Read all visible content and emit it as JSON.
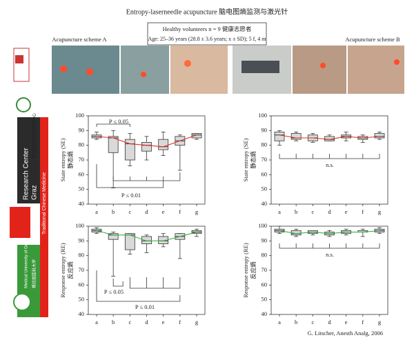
{
  "header": {
    "title": "Entropy-laserneedle acupuncture 脑电图熵监测与激光针",
    "group": "Healthy volunteers n = 9   健康志愿者",
    "age": "Age: 25–36 years (28.8 ± 3.6 years; x ± SD); 5 f, 4 m"
  },
  "schemes": [
    "Acupuncture scheme A",
    "Acupuncture scheme B"
  ],
  "sidebar": {
    "center": "Research Center",
    "city": "Graz",
    "center_cn": "格拉兹传统中医科研中心",
    "tcm": "Traditional Chinese Medicine",
    "uni": "Medical University of Graz",
    "uni_cn": "格拉兹医科大学"
  },
  "credit": "G. Litscher, Anesth Analg, 2006",
  "chart_data": [
    {
      "type": "box",
      "ylabel": "State entropy (SE)",
      "ylabel_cn": "静态熵",
      "categories": [
        "a",
        "b",
        "c",
        "d",
        "e",
        "f",
        "g"
      ],
      "min": [
        84,
        51,
        66,
        70,
        73,
        63,
        84
      ],
      "q1": [
        85,
        75,
        70,
        76,
        77,
        80,
        85
      ],
      "median": [
        86,
        85,
        81,
        80,
        79,
        83,
        87
      ],
      "q3": [
        87,
        86,
        84,
        82,
        84,
        86,
        88
      ],
      "max": [
        89,
        90,
        88,
        86,
        89,
        87,
        88
      ],
      "line_color": "#e0302a",
      "box_color": "#d9d9d9",
      "ylim": [
        40,
        100
      ],
      "yticks": [
        40,
        50,
        60,
        70,
        80,
        90,
        100
      ],
      "annotations": [
        "P ≤ 0.05",
        "P ≤ 0.01"
      ]
    },
    {
      "type": "box",
      "ylabel": "State entropy (SE)",
      "ylabel_cn": "静态熵",
      "categories": [
        "a",
        "b",
        "c",
        "d",
        "e",
        "f",
        "g"
      ],
      "min": [
        80,
        83,
        82,
        83,
        83,
        82,
        84
      ],
      "q1": [
        83,
        84,
        83,
        83,
        85,
        84,
        85
      ],
      "median": [
        87,
        85,
        85,
        84,
        86,
        85,
        86
      ],
      "q3": [
        89,
        88,
        87,
        86,
        87,
        86,
        88
      ],
      "max": [
        90,
        89,
        88,
        87,
        89,
        87,
        89
      ],
      "line_color": "#e0302a",
      "box_color": "#d9d9d9",
      "ylim": [
        40,
        100
      ],
      "yticks": [
        40,
        50,
        60,
        70,
        80,
        90,
        100
      ],
      "annotations": [
        "n.s."
      ]
    },
    {
      "type": "box",
      "ylabel": "Response entropy (RE)",
      "ylabel_cn": "反应熵",
      "categories": [
        "a",
        "b",
        "c",
        "d",
        "e",
        "f",
        "g"
      ],
      "min": [
        95,
        66,
        81,
        82,
        86,
        78,
        93
      ],
      "q1": [
        96,
        91,
        84,
        88,
        88,
        91,
        95
      ],
      "median": [
        97,
        94,
        94,
        90,
        90,
        93,
        96
      ],
      "q3": [
        98,
        95,
        95,
        93,
        93,
        95,
        97
      ],
      "max": [
        99,
        96,
        95,
        94,
        95,
        95,
        98
      ],
      "line_color": "#3cb24a",
      "box_color": "#d9d9d9",
      "ylim": [
        40,
        100
      ],
      "yticks": [
        40,
        50,
        60,
        70,
        80,
        90,
        100
      ],
      "annotations": [
        "P ≤ 0.05",
        "P ≤ 0.01"
      ]
    },
    {
      "type": "box",
      "ylabel": "Response entropy (RE)",
      "ylabel_cn": "反应熵",
      "categories": [
        "a",
        "b",
        "c",
        "d",
        "e",
        "f",
        "g"
      ],
      "min": [
        95,
        93,
        94,
        93,
        94,
        93,
        95
      ],
      "q1": [
        96,
        94,
        95,
        94,
        95,
        96,
        96
      ],
      "median": [
        97,
        95,
        96,
        95,
        96,
        96,
        97
      ],
      "q3": [
        98,
        97,
        97,
        96,
        97,
        97,
        98
      ],
      "max": [
        100,
        98,
        97,
        97,
        98,
        98,
        99
      ],
      "line_color": "#3cb24a",
      "box_color": "#d9d9d9",
      "ylim": [
        40,
        100
      ],
      "yticks": [
        40,
        50,
        60,
        70,
        80,
        90,
        100
      ],
      "annotations": [
        "n.s."
      ]
    }
  ]
}
